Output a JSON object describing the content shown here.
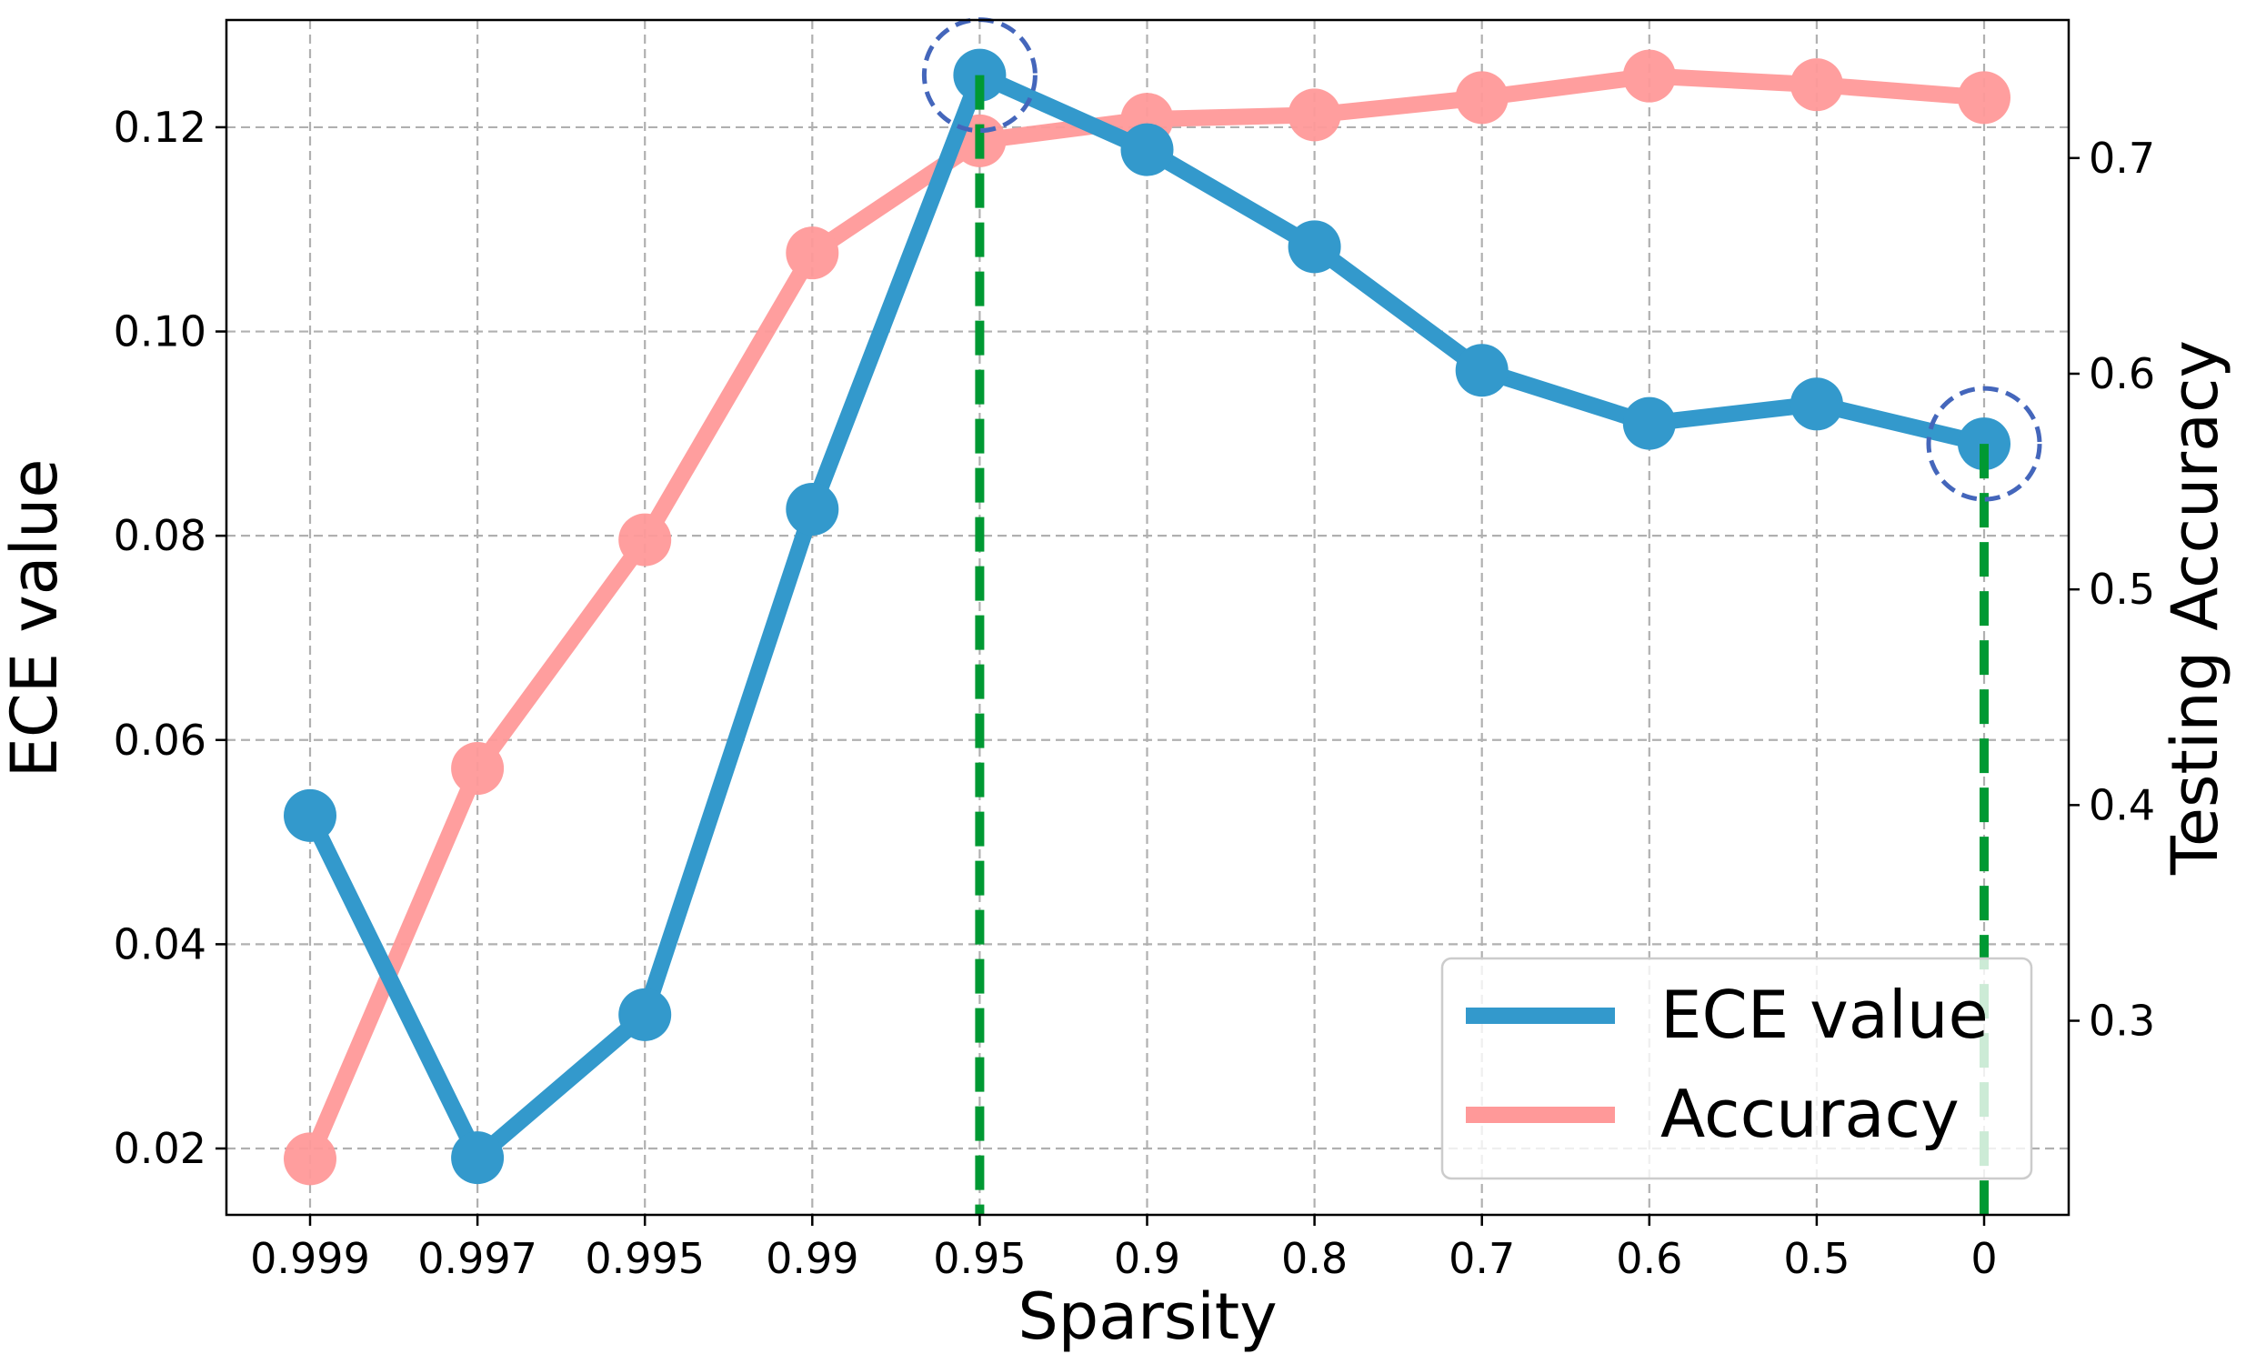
{
  "chart_data": {
    "type": "line",
    "title": "",
    "xlabel": "Sparsity",
    "ylabel": "ECE value",
    "y2label": "Testing Accuracy",
    "categories": [
      "0.999",
      "0.997",
      "0.995",
      "0.99",
      "0.95",
      "0.9",
      "0.8",
      "0.7",
      "0.6",
      "0.5",
      "0"
    ],
    "ylim": [
      0.0135,
      0.1305
    ],
    "y2lim": [
      0.21,
      0.764
    ],
    "yticks": [
      "0.02",
      "0.04",
      "0.06",
      "0.08",
      "0.10",
      "0.12"
    ],
    "y2ticks": [
      "0.3",
      "0.4",
      "0.5",
      "0.6",
      "0.7"
    ],
    "grid": true,
    "legend_position": "bottom-right",
    "series": [
      {
        "name": "ECE value",
        "axis": "left",
        "color": "#3399cc",
        "values": [
          0.0526,
          0.0191,
          0.0331,
          0.0826,
          0.1251,
          0.1178,
          0.1083,
          0.0962,
          0.091,
          0.0929,
          0.089
        ]
      },
      {
        "name": "Accuracy",
        "axis": "right",
        "color": "#ff9999",
        "values": [
          0.236,
          0.417,
          0.523,
          0.656,
          0.708,
          0.718,
          0.72,
          0.728,
          0.738,
          0.734,
          0.728
        ]
      }
    ],
    "highlights": {
      "vertical_lines": [
        "0.95",
        "0"
      ],
      "vertical_line_color": "#009933",
      "circled_points": [
        {
          "series": "ECE value",
          "category": "0.95"
        },
        {
          "series": "ECE value",
          "category": "0"
        }
      ],
      "circle_color": "#4466bb"
    },
    "legend": [
      {
        "label": "ECE value",
        "color": "#3399cc"
      },
      {
        "label": "Accuracy",
        "color": "#ff9999"
      }
    ]
  }
}
